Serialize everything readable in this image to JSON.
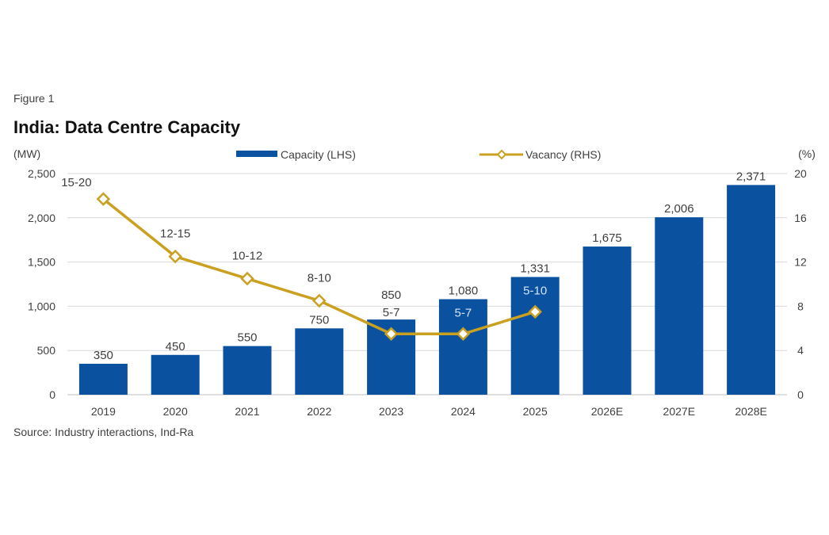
{
  "figure_label": "Figure 1",
  "source": "Source: Industry interactions, Ind-Ra",
  "colors": {
    "capacity": "#0A52A0",
    "vacancy": "#C9A020",
    "grid": "#D9D9D9",
    "text": "#404040"
  },
  "chart_data": {
    "type": "bar",
    "title": "India: Data Centre Capacity",
    "categories": [
      "2019",
      "2020",
      "2021",
      "2022",
      "2023",
      "2024",
      "2025",
      "2026E",
      "2027E",
      "2028E"
    ],
    "ylabel": "(MW)",
    "y2label": "(%)",
    "ylim": [
      0,
      2500
    ],
    "y2lim": [
      0,
      20
    ],
    "yticks": [
      "0",
      "500",
      "1,000",
      "1,500",
      "2,000",
      "2,500"
    ],
    "y2ticks": [
      "0",
      "4",
      "8",
      "12",
      "16",
      "20"
    ],
    "grid": true,
    "legend_position": "top",
    "series": [
      {
        "name": "Capacity (LHS)",
        "type": "bar",
        "axis": "left",
        "values": [
          350,
          450,
          550,
          750,
          850,
          1080,
          1331,
          1675,
          2006,
          2371
        ],
        "labels": [
          "350",
          "450",
          "550",
          "750",
          "850",
          "1,080",
          "1,331",
          "1,675",
          "2,006",
          "2,371"
        ]
      },
      {
        "name": "Vacancy (RHS)",
        "type": "line",
        "axis": "right",
        "values": [
          17.7,
          12.5,
          10.5,
          8.5,
          5.5,
          5.5,
          7.5,
          null,
          null,
          null
        ],
        "labels": [
          "15-20",
          "12-15",
          "10-12",
          "8-10",
          "5-7",
          "5-7",
          "5-10",
          null,
          null,
          null
        ]
      }
    ]
  }
}
